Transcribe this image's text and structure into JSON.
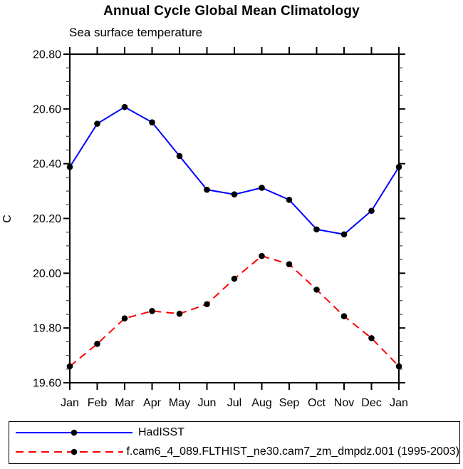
{
  "chart_data": {
    "type": "line",
    "title": "Annual Cycle Global Mean Climatology",
    "subtitle": "Sea surface temperature",
    "ylabel": "C",
    "x_categories": [
      "Jan",
      "Feb",
      "Mar",
      "Apr",
      "May",
      "Jun",
      "Jul",
      "Aug",
      "Sep",
      "Oct",
      "Nov",
      "Dec",
      "Jan"
    ],
    "ylim": [
      19.6,
      20.8
    ],
    "y_minor_step": 0.05,
    "grid": false,
    "legend_position": "bottom-box",
    "y_major_ticks": [
      {
        "value": 19.6,
        "label": "19.60"
      },
      {
        "value": 19.8,
        "label": "19.80"
      },
      {
        "value": 20.0,
        "label": "20.00"
      },
      {
        "value": 20.2,
        "label": "20.20"
      },
      {
        "value": 20.4,
        "label": "20.40"
      },
      {
        "value": 20.6,
        "label": "20.60"
      },
      {
        "value": 20.8,
        "label": "20.80"
      }
    ],
    "series": [
      {
        "name": "HadISST",
        "color": "#0000ff",
        "line_style": "solid",
        "marker": "filled-circle",
        "marker_color": "#000000",
        "values": [
          20.388,
          20.546,
          20.607,
          20.551,
          20.428,
          20.305,
          20.288,
          20.312,
          20.268,
          20.16,
          20.142,
          20.228,
          20.388
        ]
      },
      {
        "name": "f.cam6_4_089.FLTHIST_ne30.cam7_zm_dmpdz.001 (1995-2003)",
        "color": "#ff0000",
        "line_style": "dashed",
        "marker": "filled-circle",
        "marker_color": "#000000",
        "values": [
          19.66,
          19.742,
          19.835,
          19.862,
          19.852,
          19.887,
          19.98,
          20.063,
          20.033,
          19.94,
          19.843,
          19.763,
          19.66
        ]
      }
    ]
  }
}
